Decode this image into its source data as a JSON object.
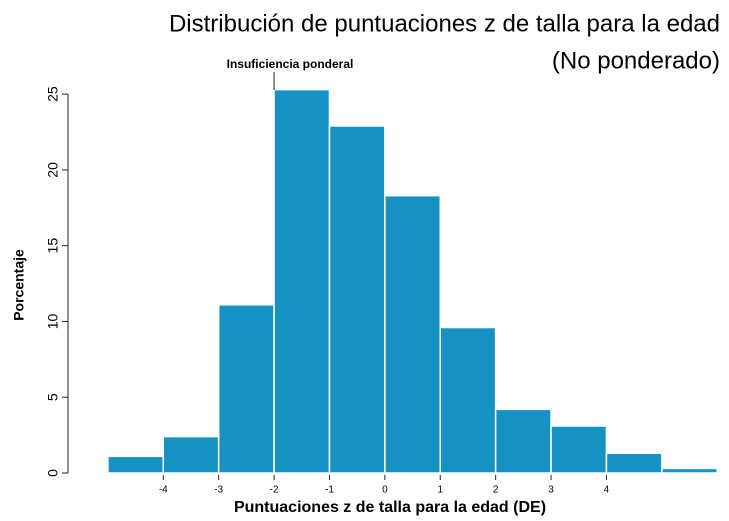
{
  "chart_data": {
    "type": "histogram",
    "title": "Distribución de puntuaciones z de talla para la edad",
    "subtitle": "(No ponderado)",
    "x_label": "Puntuaciones z de talla para la edad (DE)",
    "y_label": "Porcentaje",
    "annotation": {
      "text": "Insuficiencia ponderal",
      "x": -2
    },
    "bins": [
      -5,
      -4,
      -3,
      -2,
      -1,
      0,
      1,
      2,
      3,
      4,
      5,
      6
    ],
    "values": [
      1.1,
      2.4,
      11.1,
      25.3,
      22.9,
      18.3,
      9.6,
      4.2,
      3.1,
      1.3,
      0.3
    ],
    "color": "#1692c2",
    "xlim": [
      -5.72,
      6.05
    ],
    "xticks": [
      -4,
      -3,
      -2,
      -1,
      0,
      1,
      2,
      3,
      4
    ],
    "ylim": [
      0,
      26
    ],
    "yticks": [
      0,
      5,
      10,
      15,
      20,
      25
    ]
  }
}
